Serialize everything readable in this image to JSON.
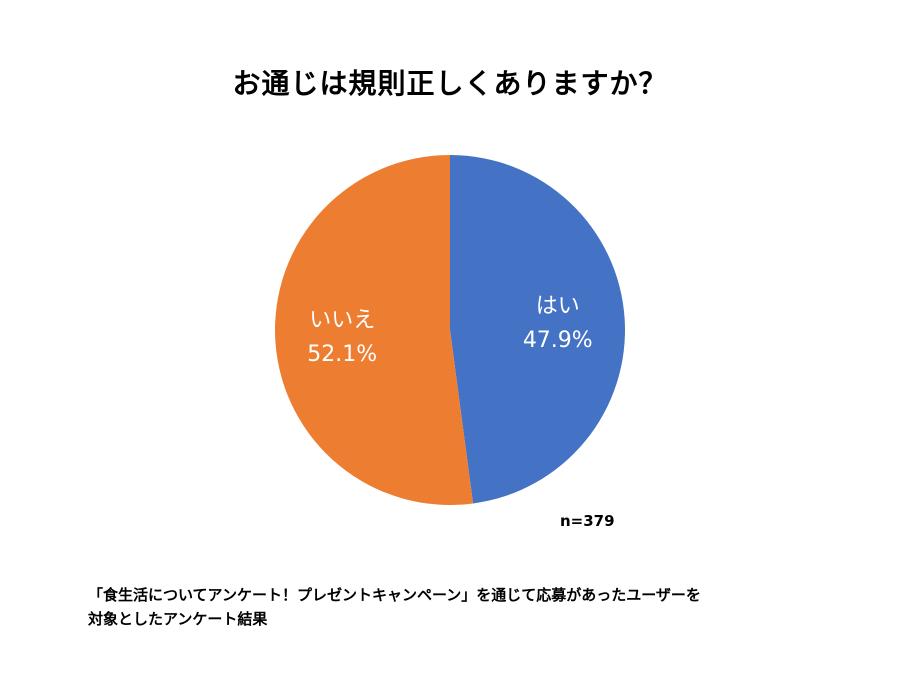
{
  "chart_data": {
    "type": "pie",
    "title": "お通じは規則正しくありますか？",
    "slices": [
      {
        "label": "はい",
        "value": 47.9,
        "value_label": "47.9%",
        "color": "#4472C4"
      },
      {
        "label": "いいえ",
        "value": 52.1,
        "value_label": "52.1%",
        "color": "#ED7D31"
      }
    ],
    "start": "12 o'clock",
    "direction": "clockwise",
    "annotation": "n=379"
  },
  "footnote": {
    "line1": "「食生活についてアンケート！プレゼントキャンペーン」を通じて応募があったユーザーを",
    "line2": "対象としたアンケート結果"
  }
}
